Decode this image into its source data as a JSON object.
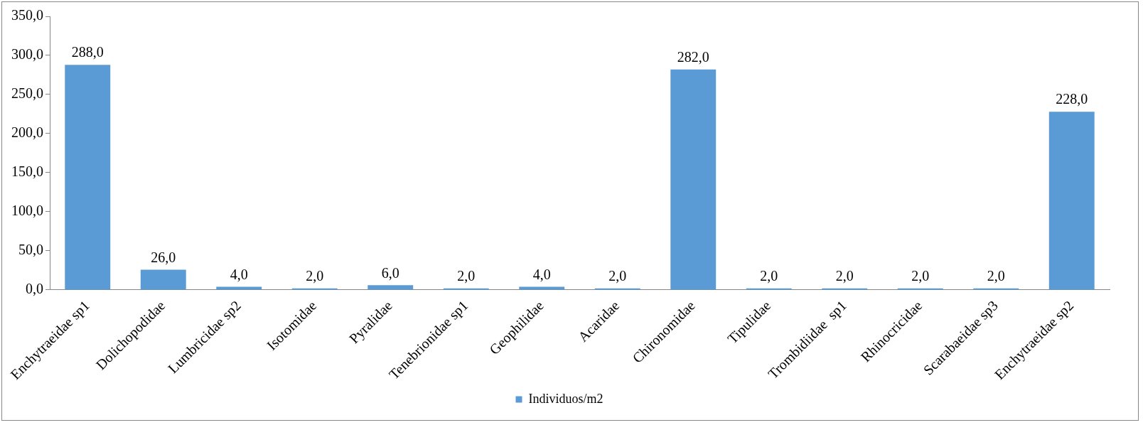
{
  "chart_data": {
    "type": "bar",
    "categories": [
      "Enchytraeidae sp1",
      "Dolichopodidae",
      "Lumbricidae sp2",
      "Isotomidae",
      "Pyralidae",
      "Tenebrionidae sp1",
      "Geophilidae",
      "Acaridae",
      "Chironomidae",
      "Tipulidae",
      "Trombidiidae  sp1",
      "Rhinocricidae",
      "Scarabaeidae sp3",
      "Enchytraeidae sp2"
    ],
    "series": [
      {
        "name": "Individuos/m2",
        "color": "#5b9bd5",
        "values": [
          288,
          26,
          4,
          2,
          6,
          2,
          4,
          2,
          282,
          2,
          2,
          2,
          2,
          228
        ],
        "value_labels": [
          "288,0",
          "26,0",
          "4,0",
          "2,0",
          "6,0",
          "2,0",
          "4,0",
          "2,0",
          "282,0",
          "2,0",
          "2,0",
          "2,0",
          "2,0",
          "228,0"
        ]
      }
    ],
    "ylim": [
      0,
      350
    ],
    "yticks": [
      {
        "value": 0,
        "label": "0,0"
      },
      {
        "value": 50,
        "label": "50,0"
      },
      {
        "value": 100,
        "label": "100,0"
      },
      {
        "value": 150,
        "label": "150,0"
      },
      {
        "value": 200,
        "label": "200,0"
      },
      {
        "value": 250,
        "label": "250,0"
      },
      {
        "value": 300,
        "label": "300,0"
      },
      {
        "value": 350,
        "label": "350,0"
      }
    ],
    "grid": false,
    "legend": "bottom"
  }
}
